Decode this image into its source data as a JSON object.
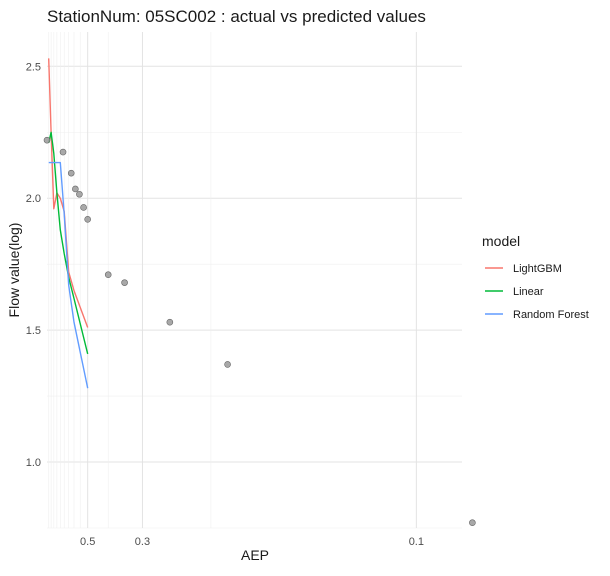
{
  "chart_data": {
    "type": "line",
    "title": "StationNum: 05SC002 : actual vs predicted values",
    "xlabel": "AEP",
    "ylabel": "Flow value(log)",
    "x_scale": "reciprocal",
    "xlim": [
      0.99,
      0.09
    ],
    "ylim": [
      0.75,
      2.63
    ],
    "x_tick_labels": [
      {
        "value": 0.5,
        "label": "0.5"
      },
      {
        "value": 0.3,
        "label": "0.3"
      },
      {
        "value": 0.1,
        "label": "0.1"
      }
    ],
    "x_minor_gridlines": [
      0.95,
      0.9,
      0.85,
      0.8,
      0.75,
      0.7,
      0.65,
      0.6,
      0.55,
      0.4,
      0.2
    ],
    "y_ticks": [
      1.0,
      1.5,
      2.0,
      2.5
    ],
    "y_tick_labels": [
      "1.0",
      "1.5",
      "2.0",
      "2.5"
    ],
    "y_minor_gridlines": [
      0.75,
      1.25,
      1.75,
      2.25
    ],
    "grid": true,
    "legend": {
      "title": "model",
      "position": "right"
    },
    "series": [
      {
        "name": "LightGBM",
        "color": "#f8766d",
        "x": [
          0.95,
          0.9,
          0.85,
          0.8,
          0.75,
          0.7,
          0.65,
          0.6,
          0.5
        ],
        "y": [
          2.53,
          2.25,
          1.96,
          2.02,
          2.0,
          1.95,
          1.72,
          1.65,
          1.51
        ]
      },
      {
        "name": "Linear",
        "color": "#00ba38",
        "x": [
          0.95,
          0.9,
          0.85,
          0.8,
          0.75,
          0.7,
          0.65,
          0.6,
          0.5
        ],
        "y": [
          2.21,
          2.25,
          2.17,
          2.02,
          1.88,
          1.79,
          1.7,
          1.62,
          1.41
        ]
      },
      {
        "name": "Random Forest",
        "color": "#619cff",
        "x": [
          0.95,
          0.9,
          0.85,
          0.8,
          0.75,
          0.7,
          0.65,
          0.6,
          0.5
        ],
        "y": [
          2.135,
          2.135,
          2.135,
          2.135,
          2.135,
          1.94,
          1.67,
          1.53,
          1.28
        ]
      }
    ],
    "actual_points": {
      "color": "#999999",
      "x": [
        0.99,
        0.714,
        0.625,
        0.588,
        0.556,
        0.526,
        0.5,
        0.4,
        0.345,
        0.25,
        0.185,
        0.088
      ],
      "y": [
        2.22,
        2.175,
        2.095,
        2.035,
        2.015,
        1.965,
        1.92,
        1.71,
        1.68,
        1.53,
        1.37,
        0.77
      ]
    }
  }
}
